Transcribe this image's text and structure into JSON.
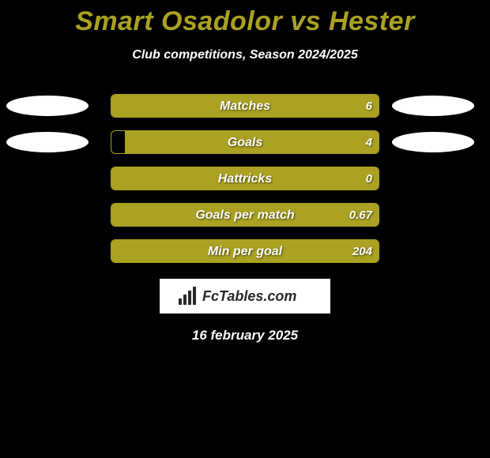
{
  "background_color": "#000000",
  "title": {
    "text": "Smart Osadolor vs Hester",
    "color": "#aba122",
    "fontsize": 34,
    "fontweight": 900
  },
  "subtitle": {
    "text": "Club competitions, Season 2024/2025",
    "color": "#ffffff",
    "fontsize": 16
  },
  "ellipse": {
    "color": "#ffffff",
    "width": 104,
    "height": 26,
    "show_on_rows": [
      0,
      1
    ]
  },
  "bars": {
    "track_width": 340,
    "track_height": 30,
    "border_color": "#aba122",
    "border_radius": 6,
    "fill_color": "#aba122",
    "label_color": "#ffffff",
    "value_color": "#ffffff",
    "label_fontsize": 16
  },
  "stats": [
    {
      "label": "Matches",
      "left_value": "",
      "right_value": "6",
      "left_fill_pct": 0,
      "right_fill_pct": 100
    },
    {
      "label": "Goals",
      "left_value": "",
      "right_value": "4",
      "left_fill_pct": 0,
      "right_fill_pct": 95
    },
    {
      "label": "Hattricks",
      "left_value": "",
      "right_value": "0",
      "left_fill_pct": 0,
      "right_fill_pct": 100
    },
    {
      "label": "Goals per match",
      "left_value": "",
      "right_value": "0.67",
      "left_fill_pct": 0,
      "right_fill_pct": 100
    },
    {
      "label": "Min per goal",
      "left_value": "",
      "right_value": "204",
      "left_fill_pct": 0,
      "right_fill_pct": 100
    }
  ],
  "brand": {
    "text": "FcTables.com",
    "background": "#ffffff",
    "text_color": "#2a2a2a",
    "fontsize": 18
  },
  "date": {
    "text": "16 february 2025",
    "color": "#ffffff",
    "fontsize": 17
  }
}
